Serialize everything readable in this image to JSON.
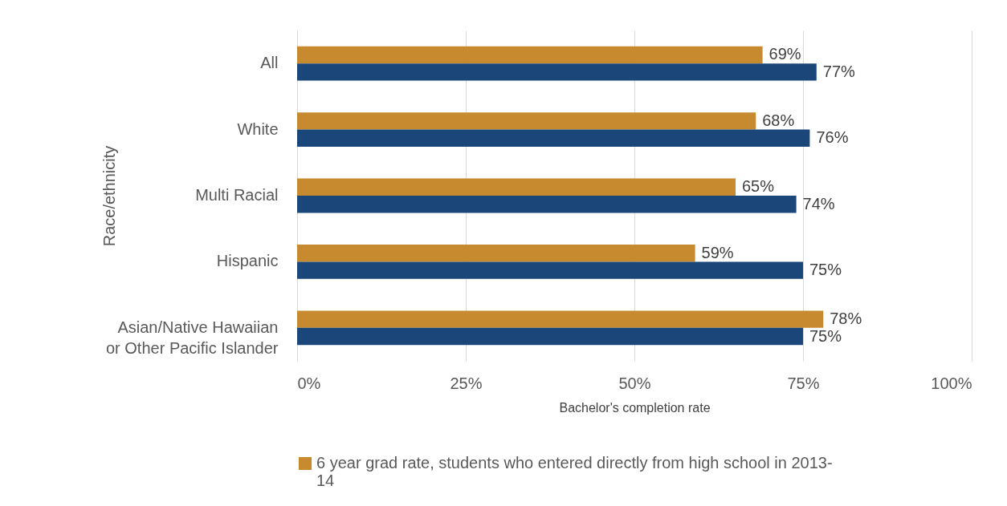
{
  "chart_data": {
    "type": "bar",
    "orientation": "horizontal",
    "xlabel": "Bachelor's completion rate",
    "ylabel": "Race/ethnicity",
    "categories": [
      "All",
      "White",
      "Multi Racial",
      "Hispanic",
      "Asian/Native Hawaiian or Other Pacific Islander"
    ],
    "series": [
      {
        "name": "6 year grad rate, students who entered directly from high school in 2013-14",
        "color": "#c88a2e",
        "values": [
          69,
          68,
          65,
          59,
          78
        ],
        "value_labels": [
          "69%",
          "68%",
          "65%",
          "59%",
          "78%"
        ]
      },
      {
        "color": "#1b4679",
        "values": [
          77,
          76,
          74,
          75,
          75
        ],
        "value_labels": [
          "77%",
          "76%",
          "74%",
          "75%",
          "75%"
        ]
      }
    ],
    "xlim": [
      0,
      100
    ],
    "xticks": [
      {
        "value": 0,
        "label": "0%"
      },
      {
        "value": 25,
        "label": "25%"
      },
      {
        "value": 50,
        "label": "50%"
      },
      {
        "value": 75,
        "label": "75%"
      },
      {
        "value": 100,
        "label": "100%"
      }
    ],
    "grid": "x",
    "legend": "bottom"
  }
}
